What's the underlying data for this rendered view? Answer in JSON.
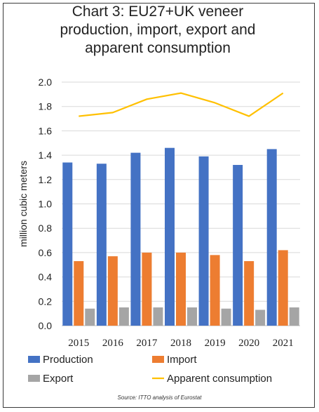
{
  "chart_data": {
    "type": "bar",
    "title": "Chart 3: EU27+UK veneer production, import, export and apparent consumption",
    "ylabel": "million cubic meters",
    "xlabel": "",
    "ylim": [
      0,
      2.0
    ],
    "ytick_step": 0.2,
    "yticks": [
      "0.0",
      "0.2",
      "0.4",
      "0.6",
      "0.8",
      "1.0",
      "1.2",
      "1.4",
      "1.6",
      "1.8",
      "2.0"
    ],
    "grid": true,
    "legend_position": "bottom",
    "categories": [
      "2015",
      "2016",
      "2017",
      "2018",
      "2019",
      "2020",
      "2021"
    ],
    "series": [
      {
        "name": "Production",
        "type": "bar",
        "color": "#4472c4",
        "values": [
          1.34,
          1.33,
          1.42,
          1.46,
          1.39,
          1.32,
          1.45
        ]
      },
      {
        "name": "Import",
        "type": "bar",
        "color": "#ed7d31",
        "values": [
          0.53,
          0.57,
          0.6,
          0.6,
          0.58,
          0.53,
          0.62
        ]
      },
      {
        "name": "Export",
        "type": "bar",
        "color": "#a5a5a5",
        "values": [
          0.14,
          0.15,
          0.15,
          0.15,
          0.14,
          0.13,
          0.15
        ]
      },
      {
        "name": "Apparent consumption",
        "type": "line",
        "color": "#ffc000",
        "values": [
          1.72,
          1.75,
          1.86,
          1.91,
          1.83,
          1.72,
          1.91
        ]
      }
    ],
    "source": "Source: ITTO analysis of Eurostat"
  }
}
